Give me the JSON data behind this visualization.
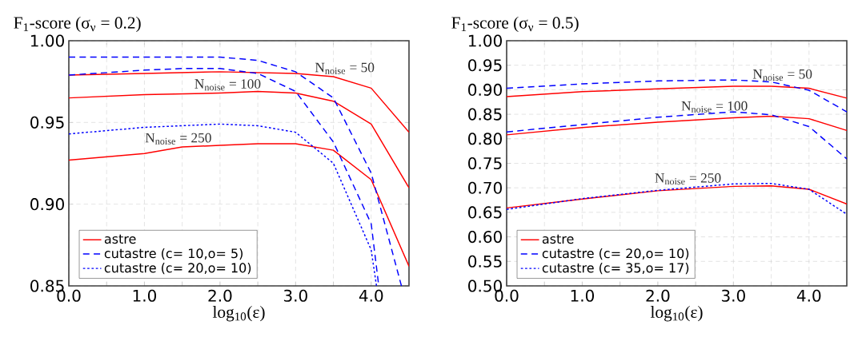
{
  "chart_data": [
    {
      "type": "line",
      "title": "F$_{1}$-score (σ$_{ν}$ = 0.2)",
      "xlabel": "log$_{10}$(ε)",
      "xlim": [
        0,
        4.5
      ],
      "xticks": [
        {
          "value": 0,
          "label": "0.0"
        },
        {
          "value": 0.5,
          "label": null
        },
        {
          "value": 1,
          "label": "1.0"
        },
        {
          "value": 1.5,
          "label": null
        },
        {
          "value": 2,
          "label": "2.0"
        },
        {
          "value": 2.5,
          "label": null
        },
        {
          "value": 3,
          "label": "3.0"
        },
        {
          "value": 3.5,
          "label": null
        },
        {
          "value": 4,
          "label": "4.0"
        }
      ],
      "ylim": [
        0.85,
        1.0
      ],
      "yticks": [
        {
          "value": 0.85,
          "label": "0.85"
        },
        {
          "value": 0.9,
          "label": "0.90"
        },
        {
          "value": 0.95,
          "label": "0.95"
        },
        {
          "value": 1.0,
          "label": "1.00"
        }
      ],
      "grid": true,
      "legend": "bottom left",
      "series": [
        {
          "name": "astre",
          "color": "#ff0000",
          "line_style": "solid",
          "x": [
            0,
            1,
            2,
            3,
            3.5,
            4,
            4.5
          ],
          "values": [
            0.979,
            0.98,
            0.981,
            0.98,
            0.978,
            0.971,
            0.944
          ]
        },
        {
          "color": "#ff0000",
          "line_style": "solid",
          "x": [
            0,
            1,
            2,
            2.5,
            3,
            3.5,
            4,
            4.5
          ],
          "values": [
            0.965,
            0.967,
            0.968,
            0.969,
            0.968,
            0.963,
            0.949,
            0.91
          ]
        },
        {
          "color": "#ff0000",
          "line_style": "solid",
          "x": [
            0,
            1,
            1.5,
            2,
            2.5,
            3,
            3.5,
            4,
            4.5
          ],
          "values": [
            0.927,
            0.931,
            0.935,
            0.936,
            0.937,
            0.937,
            0.933,
            0.915,
            0.862
          ]
        },
        {
          "name": "cutastre (c= 10,o= 5)",
          "color": "#0000ff",
          "line_style": "dashed",
          "x": [
            0,
            1,
            1.5,
            2,
            2.5,
            3,
            3.5,
            4,
            4.4
          ],
          "values": [
            0.99,
            0.99,
            0.99,
            0.99,
            0.988,
            0.981,
            0.965,
            0.919,
            0.85
          ]
        },
        {
          "color": "#0000ff",
          "line_style": "dashed",
          "x": [
            0,
            1,
            1.5,
            2,
            2.5,
            3,
            3.5,
            4,
            4.1
          ],
          "values": [
            0.979,
            0.982,
            0.983,
            0.983,
            0.98,
            0.969,
            0.938,
            0.888,
            0.85
          ]
        },
        {
          "name": "cutastre (c= 20,o= 10)",
          "color": "#0000ff",
          "line_style": "dotted",
          "x": [
            0,
            1,
            1.5,
            2,
            2.5,
            3,
            3.5,
            4,
            4.07
          ],
          "values": [
            0.943,
            0.947,
            0.948,
            0.949,
            0.948,
            0.944,
            0.925,
            0.872,
            0.85
          ]
        }
      ],
      "annotations": [
        "N$_{noise}$ = 50",
        "N$_{noise}$ = 100",
        "N$_{noise}$ = 250"
      ]
    },
    {
      "type": "line",
      "title": "F$_{1}$-score (σ$_{ν}$ = 0.5)",
      "xlabel": "log$_{10}$(ε)",
      "xlim": [
        0,
        4.5
      ],
      "xticks": [
        {
          "value": 0,
          "label": "0.0"
        },
        {
          "value": 0.5,
          "label": null
        },
        {
          "value": 1,
          "label": "1.0"
        },
        {
          "value": 1.5,
          "label": null
        },
        {
          "value": 2,
          "label": "2.0"
        },
        {
          "value": 2.5,
          "label": null
        },
        {
          "value": 3,
          "label": "3.0"
        },
        {
          "value": 3.5,
          "label": null
        },
        {
          "value": 4,
          "label": "4.0"
        }
      ],
      "ylim": [
        0.5,
        1.0
      ],
      "yticks": [
        {
          "value": 0.5,
          "label": "0.50"
        },
        {
          "value": 0.55,
          "label": "0.55"
        },
        {
          "value": 0.6,
          "label": "0.60"
        },
        {
          "value": 0.65,
          "label": "0.65"
        },
        {
          "value": 0.7,
          "label": "0.70"
        },
        {
          "value": 0.75,
          "label": "0.75"
        },
        {
          "value": 0.8,
          "label": "0.80"
        },
        {
          "value": 0.85,
          "label": "0.85"
        },
        {
          "value": 0.9,
          "label": "0.90"
        },
        {
          "value": 0.95,
          "label": "0.95"
        },
        {
          "value": 1.0,
          "label": "1.00"
        }
      ],
      "grid": true,
      "legend": "bottom left",
      "series": [
        {
          "name": "astre",
          "color": "#ff0000",
          "line_style": "solid",
          "x": [
            0,
            1,
            2,
            3,
            3.5,
            4,
            4.5
          ],
          "values": [
            0.886,
            0.896,
            0.902,
            0.907,
            0.907,
            0.903,
            0.883
          ]
        },
        {
          "color": "#ff0000",
          "line_style": "solid",
          "x": [
            0,
            1,
            2,
            3,
            3.5,
            4,
            4.5
          ],
          "values": [
            0.808,
            0.823,
            0.834,
            0.843,
            0.846,
            0.841,
            0.817
          ]
        },
        {
          "color": "#ff0000",
          "line_style": "solid",
          "x": [
            0,
            1,
            2,
            3,
            3.5,
            4,
            4.5
          ],
          "values": [
            0.659,
            0.677,
            0.694,
            0.703,
            0.704,
            0.697,
            0.667
          ]
        },
        {
          "name": "cutastre (c= 20,o= 10)",
          "color": "#0000ff",
          "line_style": "dashed",
          "x": [
            0,
            1,
            2,
            3,
            3.5,
            4,
            4.5
          ],
          "values": [
            0.903,
            0.912,
            0.918,
            0.92,
            0.916,
            0.899,
            0.855
          ]
        },
        {
          "color": "#0000ff",
          "line_style": "dashed",
          "x": [
            0,
            1,
            2,
            3,
            3.5,
            4,
            4.5
          ],
          "values": [
            0.814,
            0.829,
            0.844,
            0.855,
            0.849,
            0.825,
            0.759
          ]
        },
        {
          "name": "cutastre (c= 35,o= 17)",
          "color": "#0000ff",
          "line_style": "dotted",
          "x": [
            0,
            1,
            2,
            3,
            3.5,
            4,
            4.5
          ],
          "values": [
            0.656,
            0.678,
            0.695,
            0.708,
            0.709,
            0.697,
            0.646
          ]
        }
      ],
      "annotations": [
        "N$_{noise}$ = 50",
        "N$_{noise}$ = 100",
        "N$_{noise}$ = 250"
      ]
    }
  ]
}
